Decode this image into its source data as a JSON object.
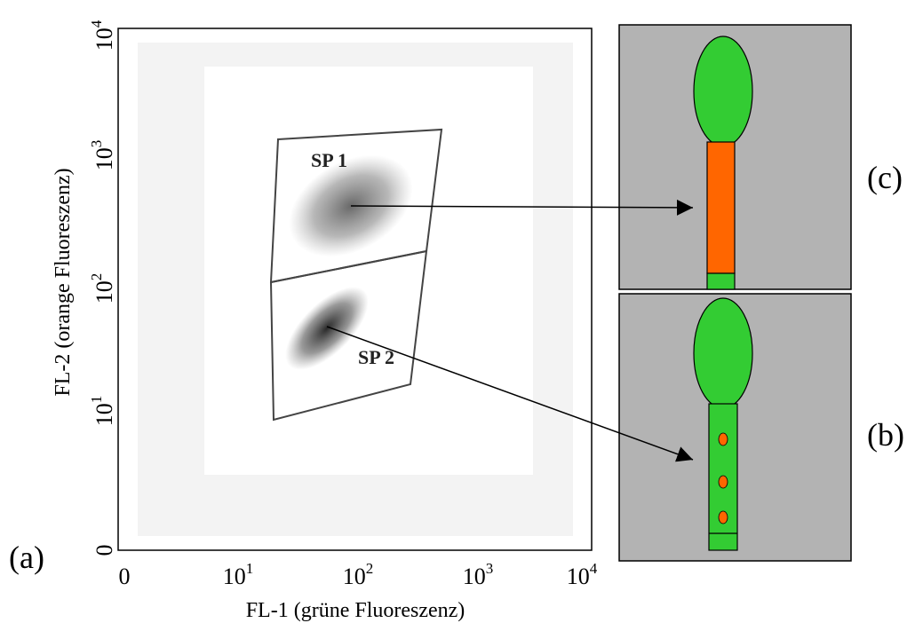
{
  "figure": {
    "panel_labels": {
      "a": "(a)",
      "b": "(b)",
      "c": "(c)"
    },
    "plot": {
      "x_axis_label": "FL-1 (grüne Fluoreszenz)",
      "y_axis_label": "FL-2 (orange  Fluoreszenz)",
      "x_ticks": [
        {
          "base": "0"
        },
        {
          "base": "10",
          "exp": "1"
        },
        {
          "base": "10",
          "exp": "2"
        },
        {
          "base": "10",
          "exp": "3"
        },
        {
          "base": "10",
          "exp": "4"
        }
      ],
      "y_ticks": [
        {
          "base": "0"
        },
        {
          "base": "10",
          "exp": "1"
        },
        {
          "base": "10",
          "exp": "2"
        },
        {
          "base": "10",
          "exp": "3"
        },
        {
          "base": "10",
          "exp": "4"
        }
      ],
      "gates": [
        {
          "label": "SP 1"
        },
        {
          "label": "SP 2"
        }
      ]
    }
  }
}
